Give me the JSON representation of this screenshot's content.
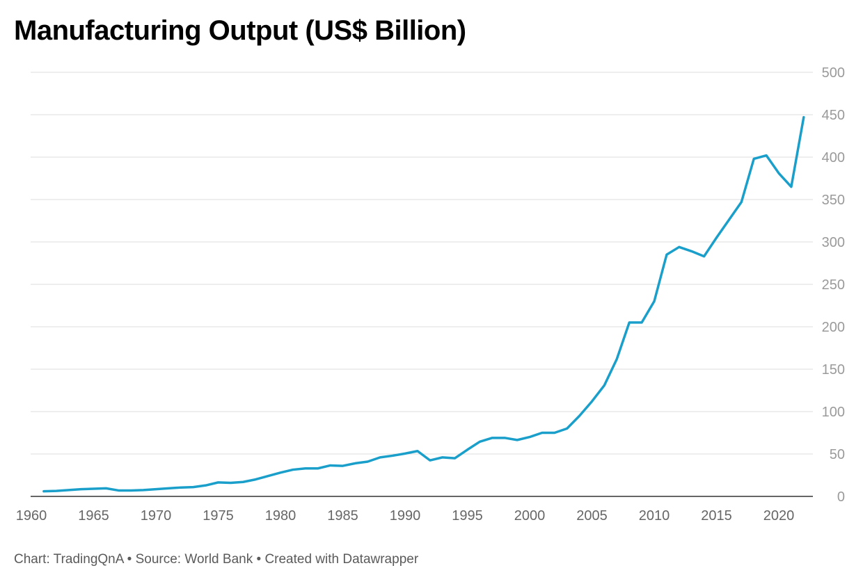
{
  "title": "Manufacturing Output (US$ Billion)",
  "footer": {
    "chart_by": "Chart: TradingQnA",
    "separator": " • ",
    "source": "Source: World Bank",
    "created_with": "Created with Datawrapper"
  },
  "colors": {
    "line": "#1a9fcb",
    "grid": "#dddddd",
    "axis": "#333333",
    "tick_label": "#9a9a9a",
    "x_tick_label": "#666666"
  },
  "chart_data": {
    "type": "line",
    "title": "Manufacturing Output (US$ Billion)",
    "xlabel": "",
    "ylabel": "",
    "xlim": [
      1960,
      2023
    ],
    "ylim": [
      0,
      500
    ],
    "grid": true,
    "legend": "none",
    "x_ticks": [
      1960,
      1965,
      1970,
      1975,
      1980,
      1985,
      1990,
      1995,
      2000,
      2005,
      2010,
      2015,
      2020
    ],
    "y_ticks": [
      0,
      50,
      100,
      150,
      200,
      250,
      300,
      350,
      400,
      450,
      500
    ],
    "series": [
      {
        "x": [
          1961,
          1962,
          1963,
          1964,
          1965,
          1966,
          1967,
          1968,
          1969,
          1970,
          1971,
          1972,
          1973,
          1974,
          1975,
          1976,
          1977,
          1978,
          1979,
          1980,
          1981,
          1982,
          1983,
          1984,
          1985,
          1986,
          1987,
          1988,
          1989,
          1990,
          1991,
          1992,
          1993,
          1994,
          1995,
          1996,
          1997,
          1998,
          1999,
          2000,
          2001,
          2002,
          2003,
          2004,
          2005,
          2006,
          2007,
          2008,
          2009,
          2010,
          2011,
          2012,
          2013,
          2014,
          2015,
          2016,
          2017,
          2018,
          2019,
          2020,
          2021,
          2022
        ],
        "values": [
          6,
          6.5,
          7.5,
          8.5,
          9,
          9.5,
          7,
          7,
          7.5,
          8.5,
          9.5,
          10.5,
          11,
          13,
          16.5,
          16,
          17,
          20,
          24,
          28,
          31.5,
          33,
          33,
          36.5,
          36,
          39,
          41,
          46,
          48,
          50.5,
          53.5,
          42.5,
          46,
          45,
          55,
          64.5,
          69,
          69,
          66.5,
          70,
          75,
          75,
          80,
          95,
          112,
          131,
          162,
          205,
          205,
          230,
          285,
          294,
          289,
          283,
          305,
          326,
          347,
          398,
          402,
          381,
          365,
          447
        ]
      }
    ]
  }
}
